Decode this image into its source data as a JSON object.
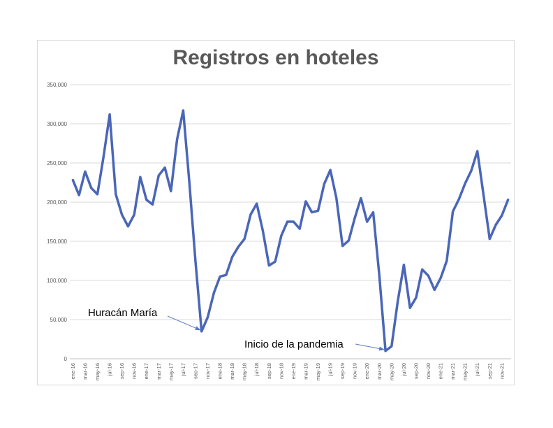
{
  "chart_data": {
    "type": "line",
    "title": "Registros en hoteles",
    "xlabel": "",
    "ylabel": "",
    "ylim": [
      0,
      350000
    ],
    "yticks": [
      "0",
      "50,000",
      "100,000",
      "150,000",
      "200,000",
      "250,000",
      "300,000",
      "350,000"
    ],
    "ytick_values": [
      0,
      50000,
      100000,
      150000,
      200000,
      250000,
      300000,
      350000
    ],
    "grid": true,
    "legend": "none",
    "line_color": "#4a66b8",
    "x": [
      "ene-16",
      "feb-16",
      "mar-16",
      "abr-16",
      "may-16",
      "jun-16",
      "jul-16",
      "ago-16",
      "sep-16",
      "oct-16",
      "nov-16",
      "dic-16",
      "ene-17",
      "feb-17",
      "mar-17",
      "abr-17",
      "may-17",
      "jun-17",
      "jul-17",
      "ago-17",
      "sep-17",
      "oct-17",
      "nov-17",
      "dic-17",
      "ene-18",
      "feb-18",
      "mar-18",
      "abr-18",
      "may-18",
      "jun-18",
      "jul-18",
      "ago-18",
      "sep-18",
      "oct-18",
      "nov-18",
      "dic-18",
      "ene-19",
      "feb-19",
      "mar-19",
      "abr-19",
      "may-19",
      "jun-19",
      "jul-19",
      "ago-19",
      "sep-19",
      "oct-19",
      "nov-19",
      "dic-19",
      "ene-20",
      "feb-20",
      "mar-20",
      "abr-20",
      "may-20",
      "jun-20",
      "jul-20",
      "ago-20",
      "sep-20",
      "oct-20",
      "nov-20",
      "dic-20",
      "ene-21",
      "feb-21",
      "mar-21",
      "abr-21",
      "may-21",
      "jun-21",
      "jul-21",
      "ago-21",
      "sep-21",
      "oct-21",
      "nov-21",
      "dic-21"
    ],
    "xtick_labels": [
      "ene-16",
      "mar-16",
      "may-16",
      "jul-16",
      "sep-16",
      "nov-16",
      "ene-17",
      "mar-17",
      "may-17",
      "jul-17",
      "sep-17",
      "nov-17",
      "ene-18",
      "mar-18",
      "may-18",
      "jul-18",
      "sep-18",
      "nov-18",
      "ene-19",
      "mar-19",
      "may-19",
      "jul-19",
      "sep-19",
      "nov-19",
      "ene-20",
      "mar-20",
      "may-20",
      "jul-20",
      "sep-20",
      "nov-20",
      "ene-21",
      "mar-21",
      "may-21",
      "jul-21",
      "sep-21",
      "nov-21"
    ],
    "values": [
      228000,
      209000,
      239000,
      218000,
      210000,
      258000,
      312000,
      210000,
      184000,
      169000,
      184000,
      232000,
      203000,
      197000,
      234000,
      244000,
      214000,
      280000,
      317000,
      225000,
      125000,
      35000,
      53000,
      84000,
      105000,
      107000,
      130000,
      143000,
      153000,
      184000,
      198000,
      163000,
      119000,
      124000,
      157000,
      175000,
      175000,
      166000,
      201000,
      187000,
      189000,
      223000,
      241000,
      205000,
      144000,
      151000,
      180000,
      205000,
      175000,
      187000,
      106000,
      10000,
      16000,
      73000,
      120000,
      65000,
      78000,
      114000,
      106000,
      88000,
      103000,
      125000,
      188000,
      204000,
      224000,
      240000,
      265000,
      209000,
      153000,
      171000,
      183000,
      203000
    ],
    "annotations": [
      {
        "text": "Huracán María",
        "target_index": 21
      },
      {
        "text": "Inicio de la pandemia",
        "target_index": 51
      }
    ]
  }
}
